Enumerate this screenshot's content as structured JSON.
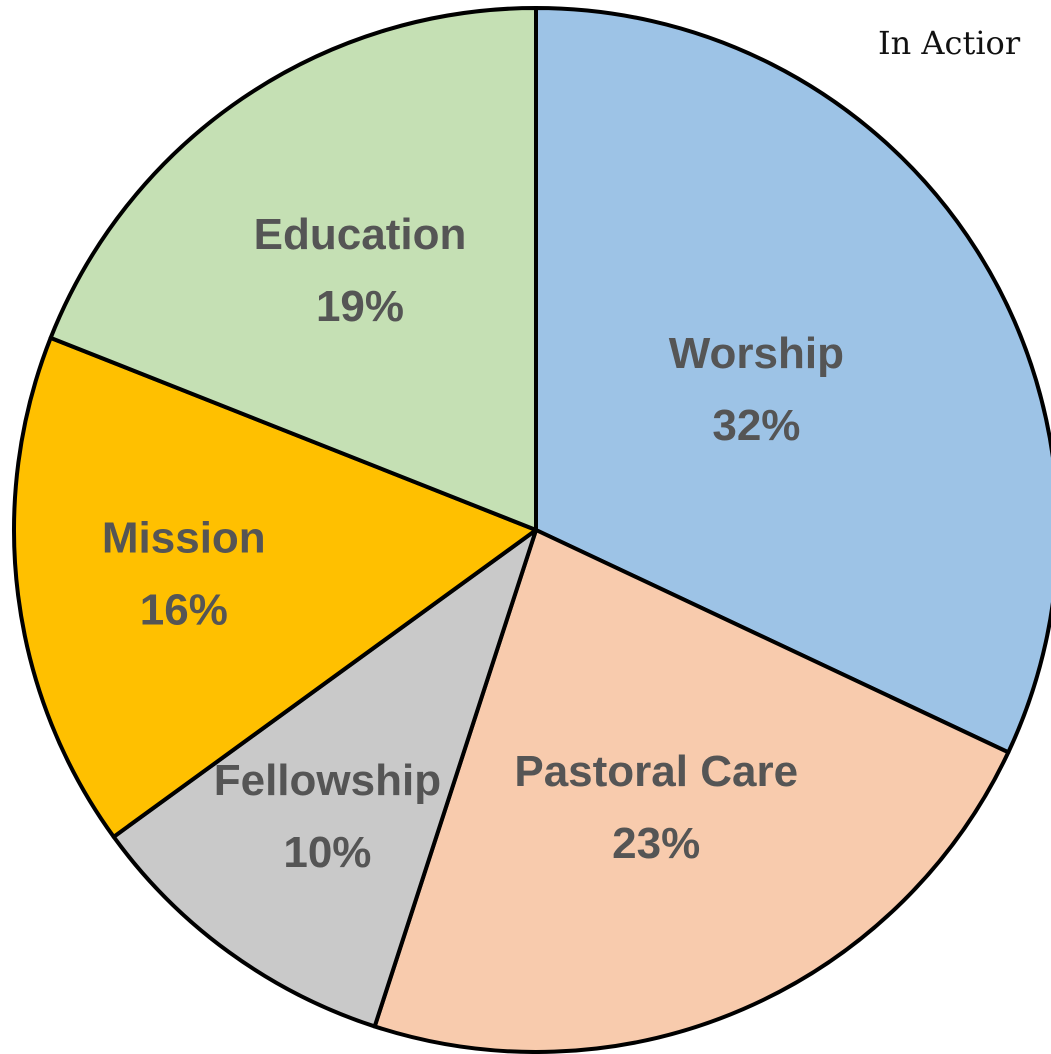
{
  "chart_data": {
    "type": "pie",
    "title": "In Actior",
    "start_angle_deg": 0,
    "direction": "clockwise",
    "slices": [
      {
        "label": "Worship",
        "value_label": "32%",
        "value": 32,
        "color": "#9DC3E6"
      },
      {
        "label": "Pastoral Care",
        "value_label": "23%",
        "value": 23,
        "color": "#F8CBAD"
      },
      {
        "label": "Fellowship",
        "value_label": "10%",
        "value": 10,
        "color": "#C9C9C9"
      },
      {
        "label": "Mission",
        "value_label": "16%",
        "value": 16,
        "color": "#FFC000"
      },
      {
        "label": "Education",
        "value_label": "19%",
        "value": 19,
        "color": "#C5E0B4"
      }
    ],
    "label_color": "#555555",
    "border_color": "#000000"
  }
}
